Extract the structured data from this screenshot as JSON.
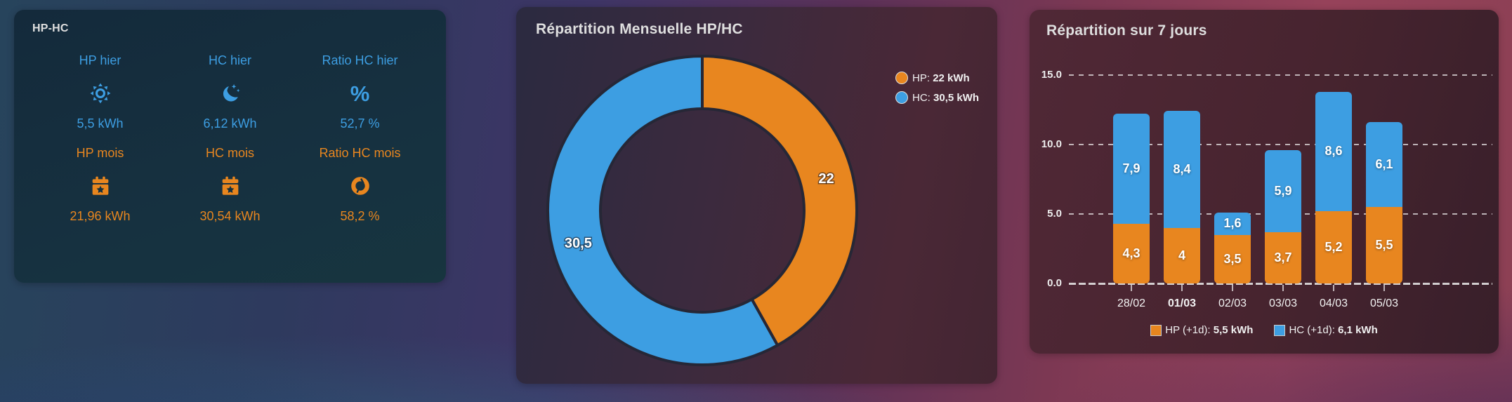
{
  "colors": {
    "blue": "#3d9ee2",
    "orange": "#e8861f",
    "grid": "rgba(255,255,255,0.65)",
    "title_text": "#dfdfdf"
  },
  "left_card": {
    "title": "HP-HC",
    "stats": [
      {
        "label": "HP hier",
        "icon": "brightness-icon",
        "value": "5,5 kWh",
        "color": "blue"
      },
      {
        "label": "HC hier",
        "icon": "moon-stars-icon",
        "value": "6,12 kWh",
        "color": "blue"
      },
      {
        "label": "Ratio HC hier",
        "icon": "percent-icon",
        "value": "52,7 %",
        "color": "blue"
      },
      {
        "label": "HP mois",
        "icon": "calendar-star-icon",
        "value": "21,96 kWh",
        "color": "orange"
      },
      {
        "label": "HC mois",
        "icon": "calendar-star-icon",
        "value": "30,54 kWh",
        "color": "orange"
      },
      {
        "label": "Ratio HC mois",
        "icon": "chart-donut-icon",
        "value": "58,2 %",
        "color": "orange"
      }
    ]
  },
  "donut_card": {
    "title": "Répartition Mensuelle HP/HC",
    "legend": [
      {
        "name": "HP:",
        "value": "22 kWh"
      },
      {
        "name": "HC:",
        "value": "30,5 kWh"
      }
    ]
  },
  "bars_card": {
    "title": "Répartition sur 7 jours",
    "legend": [
      {
        "name": "HP (+1d):",
        "value": "5,5 kWh"
      },
      {
        "name": "HC (+1d):",
        "value": "6,1 kWh"
      }
    ]
  },
  "chart_data": [
    {
      "type": "pie",
      "subtype": "donut",
      "title": "Répartition Mensuelle HP/HC",
      "legend_position": "top-right",
      "start_angle": "top",
      "direction": "clockwise",
      "series": [
        {
          "name": "HP",
          "value": 22,
          "label": "22",
          "unit": "kWh",
          "color_key": "orange"
        },
        {
          "name": "HC",
          "value": 30.5,
          "label": "30,5",
          "unit": "kWh",
          "color_key": "blue"
        }
      ]
    },
    {
      "type": "bar",
      "stacked": true,
      "title": "Répartition sur 7 jours",
      "categories": [
        "28/02",
        "01/03",
        "02/03",
        "03/03",
        "04/03",
        "05/03"
      ],
      "categories_bold": [
        false,
        true,
        false,
        false,
        false,
        false
      ],
      "series": [
        {
          "name": "HP (+1d)",
          "color_key": "orange",
          "values": [
            4.3,
            4,
            3.5,
            3.7,
            5.2,
            5.5
          ],
          "labels": [
            "4,3",
            "4",
            "3,5",
            "3,7",
            "5,2",
            "5,5"
          ]
        },
        {
          "name": "HC (+1d)",
          "color_key": "blue",
          "values": [
            7.9,
            8.4,
            1.6,
            5.9,
            8.6,
            6.1
          ],
          "labels": [
            "7,9",
            "8,4",
            "1,6",
            "5,9",
            "8,6",
            "6,1"
          ]
        }
      ],
      "yticks": [
        {
          "value": 0,
          "label": "0.0"
        },
        {
          "value": 5,
          "label": "5.0"
        },
        {
          "value": 10,
          "label": "10.0"
        },
        {
          "value": 15,
          "label": "15.0"
        }
      ],
      "ylim": [
        0,
        15.5
      ],
      "grid": "dashed",
      "unit": "kWh"
    }
  ]
}
